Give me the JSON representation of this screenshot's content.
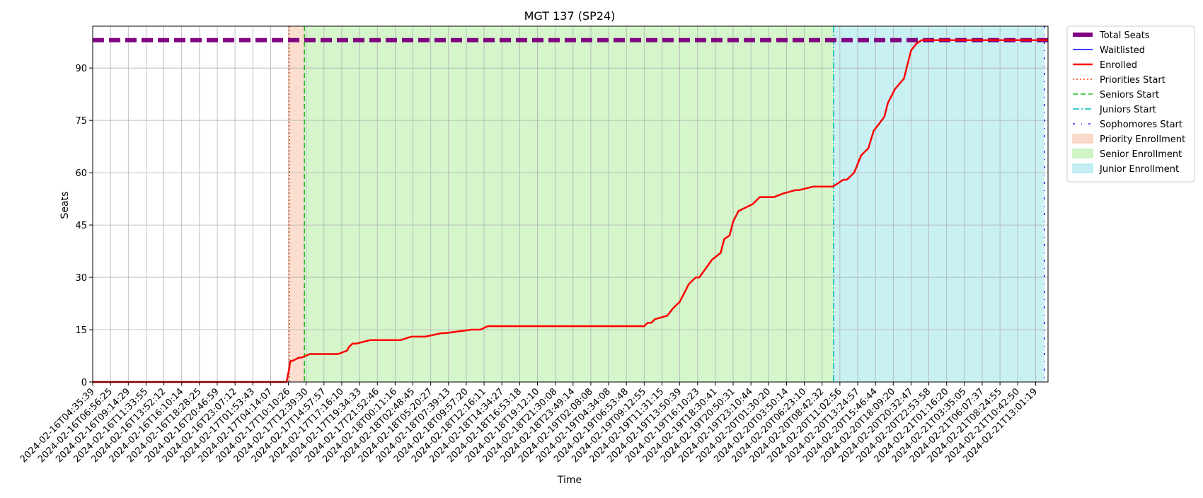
{
  "chart_data": {
    "type": "line",
    "title": "MGT 137 (SP24)",
    "xlabel": "Time",
    "ylabel": "Seats",
    "ylim": [
      0,
      102
    ],
    "yticks": [
      0,
      15,
      30,
      45,
      60,
      75,
      90
    ],
    "grid": true,
    "legend_placement": "outside-top-right",
    "x_tick_labels": [
      "2024-02-16T04:35:39",
      "2024-02-16T06:56:25",
      "2024-02-16T09:14:29",
      "2024-02-16T11:33:55",
      "2024-02-16T13:52:12",
      "2024-02-16T16:10:14",
      "2024-02-16T18:28:25",
      "2024-02-16T20:46:59",
      "2024-02-16T23:07:12",
      "2024-02-17T01:53:43",
      "2024-02-17T04:14:07",
      "2024-02-17T10:10:26",
      "2024-02-17T12:39:30",
      "2024-02-17T14:57:57",
      "2024-02-17T17:16:10",
      "2024-02-17T19:34:33",
      "2024-02-17T21:52:46",
      "2024-02-18T00:11:16",
      "2024-02-18T02:48:45",
      "2024-02-18T05:20:27",
      "2024-02-18T07:39:13",
      "2024-02-18T09:57:20",
      "2024-02-18T12:16:11",
      "2024-02-18T14:34:27",
      "2024-02-18T16:53:18",
      "2024-02-18T19:12:10",
      "2024-02-18T21:30:08",
      "2024-02-18T23:49:14",
      "2024-02-19T02:08:08",
      "2024-02-19T04:34:08",
      "2024-02-19T06:53:48",
      "2024-02-19T09:12:55",
      "2024-02-19T11:31:15",
      "2024-02-19T13:50:39",
      "2024-02-19T16:10:23",
      "2024-02-19T18:30:41",
      "2024-02-19T20:50:31",
      "2024-02-19T23:10:44",
      "2024-02-20T01:30:20",
      "2024-02-20T03:50:14",
      "2024-02-20T06:23:10",
      "2024-02-20T08:42:32",
      "2024-02-20T11:02:56",
      "2024-02-20T13:24:57",
      "2024-02-20T15:46:44",
      "2024-02-20T18:09:20",
      "2024-02-20T20:32:47",
      "2024-02-20T22:53:58",
      "2024-02-21T01:16:20",
      "2024-02-21T03:35:05",
      "2024-02-21T06:07:37",
      "2024-02-21T08:24:55",
      "2024-02-21T10:42:50",
      "2024-02-21T13:01:19"
    ],
    "x_range": [
      0,
      53.7
    ],
    "series": [
      {
        "name": "Total Seats",
        "color": "#800080",
        "style": "dashed-thick",
        "x": [
          0,
          53.7
        ],
        "y": [
          98,
          98
        ]
      },
      {
        "name": "Waitlisted",
        "color": "#0000ff",
        "style": "solid-thin",
        "x": [],
        "y": []
      },
      {
        "name": "Enrolled",
        "color": "#ff0000",
        "style": "solid-thick",
        "x": [
          0,
          10.9,
          11.05,
          11.1,
          11.2,
          11.6,
          11.75,
          12.2,
          12.35,
          12.7,
          13.8,
          14.3,
          14.4,
          14.6,
          14.8,
          15.6,
          17.3,
          17.9,
          18.0,
          18.7,
          19.6,
          19.8,
          21.3,
          21.8,
          22.2,
          23.0,
          23.3,
          31.0,
          31.2,
          31.4,
          31.6,
          32.3,
          32.6,
          33.0,
          33.3,
          33.5,
          33.9,
          34.1,
          34.8,
          35.3,
          35.5,
          35.8,
          35.9,
          36.0,
          36.3,
          37.1,
          37.5,
          38.3,
          38.8,
          39.5,
          39.7,
          40.5,
          40.8,
          41.6,
          41.9,
          42.2,
          42.4,
          42.8,
          43.2,
          43.6,
          43.9,
          44.2,
          44.5,
          44.7,
          44.9,
          45.1,
          45.6,
          46.0,
          46.3,
          46.6,
          46.9,
          47.1,
          47.4,
          47.6,
          47.9,
          48.2,
          53.7
        ],
        "y": [
          0,
          0,
          4,
          6,
          6,
          7,
          7,
          8,
          8,
          8,
          8,
          9,
          10,
          11,
          11,
          12,
          12,
          13,
          13,
          13,
          14,
          14,
          15,
          15,
          16,
          16,
          16,
          16,
          17,
          17,
          18,
          19,
          21,
          23,
          26,
          28,
          30,
          30,
          35,
          37,
          41,
          42,
          44,
          46,
          49,
          51,
          53,
          53,
          54,
          55,
          55,
          56,
          56,
          56,
          57,
          58,
          58,
          60,
          65,
          67,
          72,
          74,
          76,
          80,
          82,
          84,
          87,
          95,
          97,
          98,
          98,
          98,
          98,
          98,
          98,
          98,
          98
        ]
      }
    ],
    "vlines": [
      {
        "name": "Priorities Start",
        "x": 11.05,
        "color": "#ff4500",
        "style": "dotted"
      },
      {
        "name": "Seniors Start",
        "x": 11.9,
        "color": "#22bb22",
        "style": "dashed"
      },
      {
        "name": "Juniors Start",
        "x": 41.65,
        "color": "#00bbbb",
        "style": "dashdot"
      },
      {
        "name": "Sophomores Start",
        "x": 53.5,
        "color": "#3322ff",
        "style": "loosedashdot"
      }
    ],
    "spans": [
      {
        "name": "Priority Enrollment",
        "from": 11.05,
        "to": 11.9,
        "color": "#f6c3a8"
      },
      {
        "name": "Senior Enrollment",
        "from": 11.9,
        "to": 41.65,
        "color": "#b2efa0"
      },
      {
        "name": "Junior Enrollment",
        "from": 41.65,
        "to": 53.5,
        "color": "#9de3ea"
      }
    ],
    "legend": [
      "Total Seats",
      "Waitlisted",
      "Enrolled",
      "Priorities Start",
      "Seniors Start",
      "Juniors Start",
      "Sophomores Start",
      "Priority Enrollment",
      "Senior Enrollment",
      "Junior Enrollment"
    ]
  }
}
